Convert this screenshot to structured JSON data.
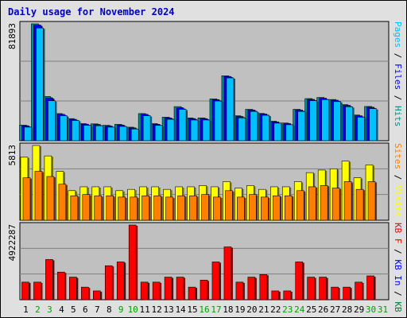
{
  "chart_data": {
    "type": "bar",
    "title": "Daily usage for November 2024",
    "categories": [
      "1",
      "2",
      "3",
      "4",
      "5",
      "6",
      "7",
      "8",
      "9",
      "10",
      "11",
      "12",
      "13",
      "14",
      "15",
      "16",
      "17",
      "18",
      "19",
      "20",
      "21",
      "22",
      "23",
      "24",
      "25",
      "26",
      "27",
      "28",
      "29",
      "30",
      "31"
    ],
    "weekend_days": [
      "2",
      "3",
      "9",
      "10",
      "16",
      "17",
      "23",
      "24",
      "30",
      "31"
    ],
    "panels": [
      {
        "id": "hits",
        "ymax": 81893,
        "ymax_label": "81893",
        "side_label_parts": [
          {
            "text": "Pages",
            "color": "#00c0ff"
          },
          {
            "text": " / ",
            "color": "#000000"
          },
          {
            "text": "Files",
            "color": "#0000ff"
          },
          {
            "text": " / ",
            "color": "#000000"
          },
          {
            "text": "Hits",
            "color": "#009090"
          }
        ],
        "series": [
          {
            "name": "Hits",
            "color": "#009090",
            "values": [
              10900,
              81893,
              31000,
              19000,
              15500,
              12000,
              11800,
              10800,
              11500,
              9500,
              19000,
              12000,
              16500,
              23900,
              16000,
              16000,
              29300,
              45500,
              17500,
              22000,
              19100,
              13700,
              12400,
              22000,
              29500,
              30300,
              28900,
              25300,
              18000,
              24000,
              0
            ]
          },
          {
            "name": "Files",
            "color": "#0000ff",
            "values": [
              10500,
              81000,
              30000,
              18500,
              15000,
              11600,
              11400,
              10300,
              11000,
              9000,
              18500,
              11500,
              16000,
              23000,
              15500,
              15500,
              28800,
              45000,
              17000,
              21500,
              18700,
              13200,
              12000,
              21500,
              29000,
              29800,
              28400,
              24800,
              17500,
              23500,
              0
            ]
          },
          {
            "name": "Pages",
            "color": "#00c0ff",
            "values": [
              9500,
              79000,
              28000,
              17500,
              14200,
              10800,
              10500,
              9500,
              10000,
              8200,
              17500,
              10700,
              15000,
              22000,
              14500,
              14500,
              27800,
              44000,
              16000,
              20500,
              17800,
              12300,
              11200,
              20500,
              28000,
              28800,
              27400,
              23800,
              16500,
              22500,
              0
            ]
          }
        ]
      },
      {
        "id": "visits",
        "ymax": 5813,
        "ymax_label": "5813",
        "side_label_parts": [
          {
            "text": "Sites",
            "color": "#ff8000"
          },
          {
            "text": " / ",
            "color": "#000000"
          },
          {
            "text": "Visits",
            "color": "#ffff00"
          }
        ],
        "series": [
          {
            "name": "Visits",
            "color": "#ffff00",
            "values": [
              4900,
              5813,
              5000,
              3800,
              2300,
              2600,
              2600,
              2600,
              2300,
              2400,
              2600,
              2600,
              2400,
              2600,
              2600,
              2700,
              2600,
              3000,
              2500,
              2700,
              2400,
              2600,
              2600,
              3000,
              3700,
              3900,
              4000,
              4600,
              3300,
              4300,
              0
            ]
          },
          {
            "name": "Sites",
            "color": "#ff8000",
            "values": [
              3300,
              3800,
              3400,
              2800,
              1900,
              2000,
              1900,
              1900,
              1800,
              1800,
              1900,
              1900,
              1800,
              1900,
              1900,
              2000,
              1800,
              2300,
              1800,
              2000,
              1800,
              1900,
              1900,
              2300,
              2600,
              2700,
              2500,
              3000,
              2400,
              3000,
              0
            ]
          }
        ]
      },
      {
        "id": "kbytes",
        "ymax": 4922287,
        "ymax_label": "4922287",
        "side_label_parts": [
          {
            "text": "KB F",
            "color": "#ff0000"
          },
          {
            "text": " / ",
            "color": "#000000"
          },
          {
            "text": "KB In",
            "color": "#0000ff"
          },
          {
            "text": " / ",
            "color": "#000000"
          },
          {
            "text": "KB Out",
            "color": "#008040"
          }
        ],
        "series": [
          {
            "name": "KB F",
            "color": "#ff0000",
            "values": [
              1160000,
              1160000,
              2650000,
              1820000,
              1490000,
              830000,
              580000,
              2240000,
              2490000,
              4922287,
              1160000,
              1160000,
              1490000,
              1490000,
              830000,
              1290000,
              2490000,
              3480000,
              1160000,
              1490000,
              1660000,
              580000,
              580000,
              2490000,
              1490000,
              1490000,
              830000,
              830000,
              1160000,
              1570000,
              0
            ]
          }
        ]
      }
    ]
  }
}
